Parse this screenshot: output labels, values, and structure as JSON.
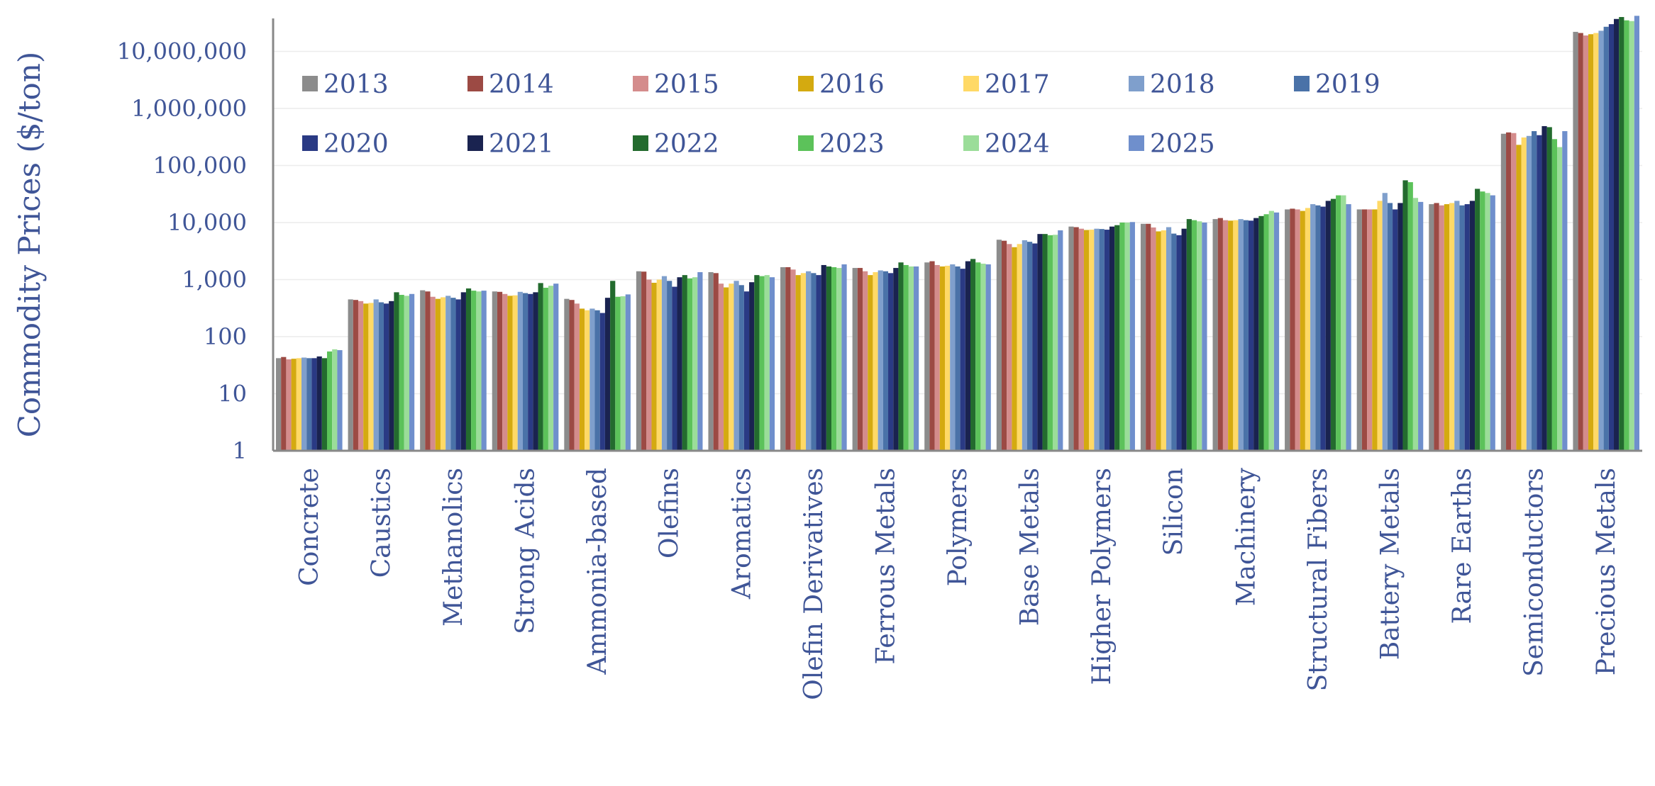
{
  "chart_data": {
    "type": "bar",
    "title": "",
    "xlabel": "",
    "ylabel": "Commodity Prices ($/ton)",
    "yscale": "log",
    "ylim": [
      1,
      30000000
    ],
    "yticks": [
      1,
      10,
      100,
      1000,
      10000,
      100000,
      1000000,
      10000000
    ],
    "ytick_labels": [
      "1",
      "10",
      "100",
      "1,000",
      "10,000",
      "100,000",
      "1,000,000",
      "10,000,000"
    ],
    "grid": true,
    "legend_position": "top-left, inside",
    "categories": [
      "Concrete",
      "Caustics",
      "Methanolics",
      "Strong Acids",
      "Ammonia-based",
      "Olefins",
      "Aromatics",
      "Olefin Derivatives",
      "Ferrous Metals",
      "Polymers",
      "Base Metals",
      "Higher Polymers",
      "Silicon",
      "Machinery",
      "Structural Fibers",
      "Battery Metals",
      "Rare Earths",
      "Semiconductors",
      "Precious Metals"
    ],
    "series": [
      {
        "name": "2013",
        "color": "#8c8c8c",
        "values": [
          42,
          450,
          650,
          620,
          460,
          1400,
          1350,
          1650,
          1600,
          2000,
          5000,
          8500,
          9500,
          11500,
          17000,
          17000,
          21000,
          360000,
          22000000
        ]
      },
      {
        "name": "2014",
        "color": "#9c4a44",
        "values": [
          44,
          440,
          620,
          610,
          440,
          1380,
          1300,
          1650,
          1600,
          2100,
          4800,
          8300,
          9500,
          12000,
          17500,
          17000,
          22000,
          380000,
          21000000
        ]
      },
      {
        "name": "2015",
        "color": "#d48c8c",
        "values": [
          40,
          420,
          500,
          560,
          380,
          1000,
          850,
          1500,
          1400,
          1800,
          4200,
          7800,
          8200,
          11000,
          17000,
          17000,
          20000,
          370000,
          19000000
        ]
      },
      {
        "name": "2016",
        "color": "#d4aa10",
        "values": [
          41,
          380,
          460,
          520,
          310,
          880,
          730,
          1200,
          1200,
          1700,
          3700,
          7400,
          7000,
          10800,
          16000,
          17000,
          21000,
          230000,
          20000000
        ]
      },
      {
        "name": "2017",
        "color": "#ffd966",
        "values": [
          42,
          390,
          490,
          530,
          290,
          1000,
          850,
          1300,
          1350,
          1750,
          4200,
          7500,
          7300,
          11000,
          18000,
          24000,
          22000,
          310000,
          21000000
        ]
      },
      {
        "name": "2018",
        "color": "#7f9fcc",
        "values": [
          43,
          450,
          520,
          610,
          310,
          1150,
          950,
          1400,
          1450,
          1850,
          4900,
          7800,
          8300,
          11500,
          21000,
          33000,
          24000,
          330000,
          23000000
        ]
      },
      {
        "name": "2019",
        "color": "#4a72a8",
        "values": [
          42,
          400,
          480,
          580,
          290,
          950,
          800,
          1300,
          1400,
          1700,
          4600,
          7700,
          6400,
          11000,
          20000,
          22000,
          20000,
          400000,
          27000000
        ]
      },
      {
        "name": "2020",
        "color": "#2a3a84",
        "values": [
          42,
          380,
          450,
          560,
          260,
          750,
          620,
          1200,
          1300,
          1550,
          4300,
          7500,
          6000,
          10800,
          19000,
          17000,
          21000,
          340000,
          30000000
        ]
      },
      {
        "name": "2021",
        "color": "#1a2350",
        "values": [
          45,
          420,
          600,
          600,
          480,
          1100,
          900,
          1800,
          1600,
          2100,
          6300,
          8500,
          7800,
          12000,
          24000,
          22000,
          24000,
          490000,
          37000000
        ]
      },
      {
        "name": "2022",
        "color": "#236b2e",
        "values": [
          42,
          600,
          700,
          870,
          950,
          1200,
          1200,
          1700,
          2000,
          2300,
          6300,
          9000,
          11500,
          13000,
          26000,
          55000,
          39000,
          470000,
          40000000
        ]
      },
      {
        "name": "2023",
        "color": "#5cc25a",
        "values": [
          55,
          540,
          640,
          720,
          500,
          1050,
          1150,
          1650,
          1800,
          2000,
          6000,
          10000,
          11000,
          14000,
          30000,
          51000,
          35000,
          290000,
          35000000
        ]
      },
      {
        "name": "2024",
        "color": "#9bdd99",
        "values": [
          60,
          520,
          620,
          780,
          510,
          1100,
          1200,
          1600,
          1700,
          1900,
          6100,
          10000,
          10500,
          16000,
          30000,
          27000,
          33000,
          210000,
          34000000
        ]
      },
      {
        "name": "2025",
        "color": "#6f8fcc",
        "values": [
          58,
          560,
          640,
          850,
          550,
          1350,
          1100,
          1850,
          1700,
          1850,
          7300,
          10200,
          10000,
          15000,
          21000,
          23000,
          30000,
          400000,
          42000000
        ]
      }
    ]
  }
}
